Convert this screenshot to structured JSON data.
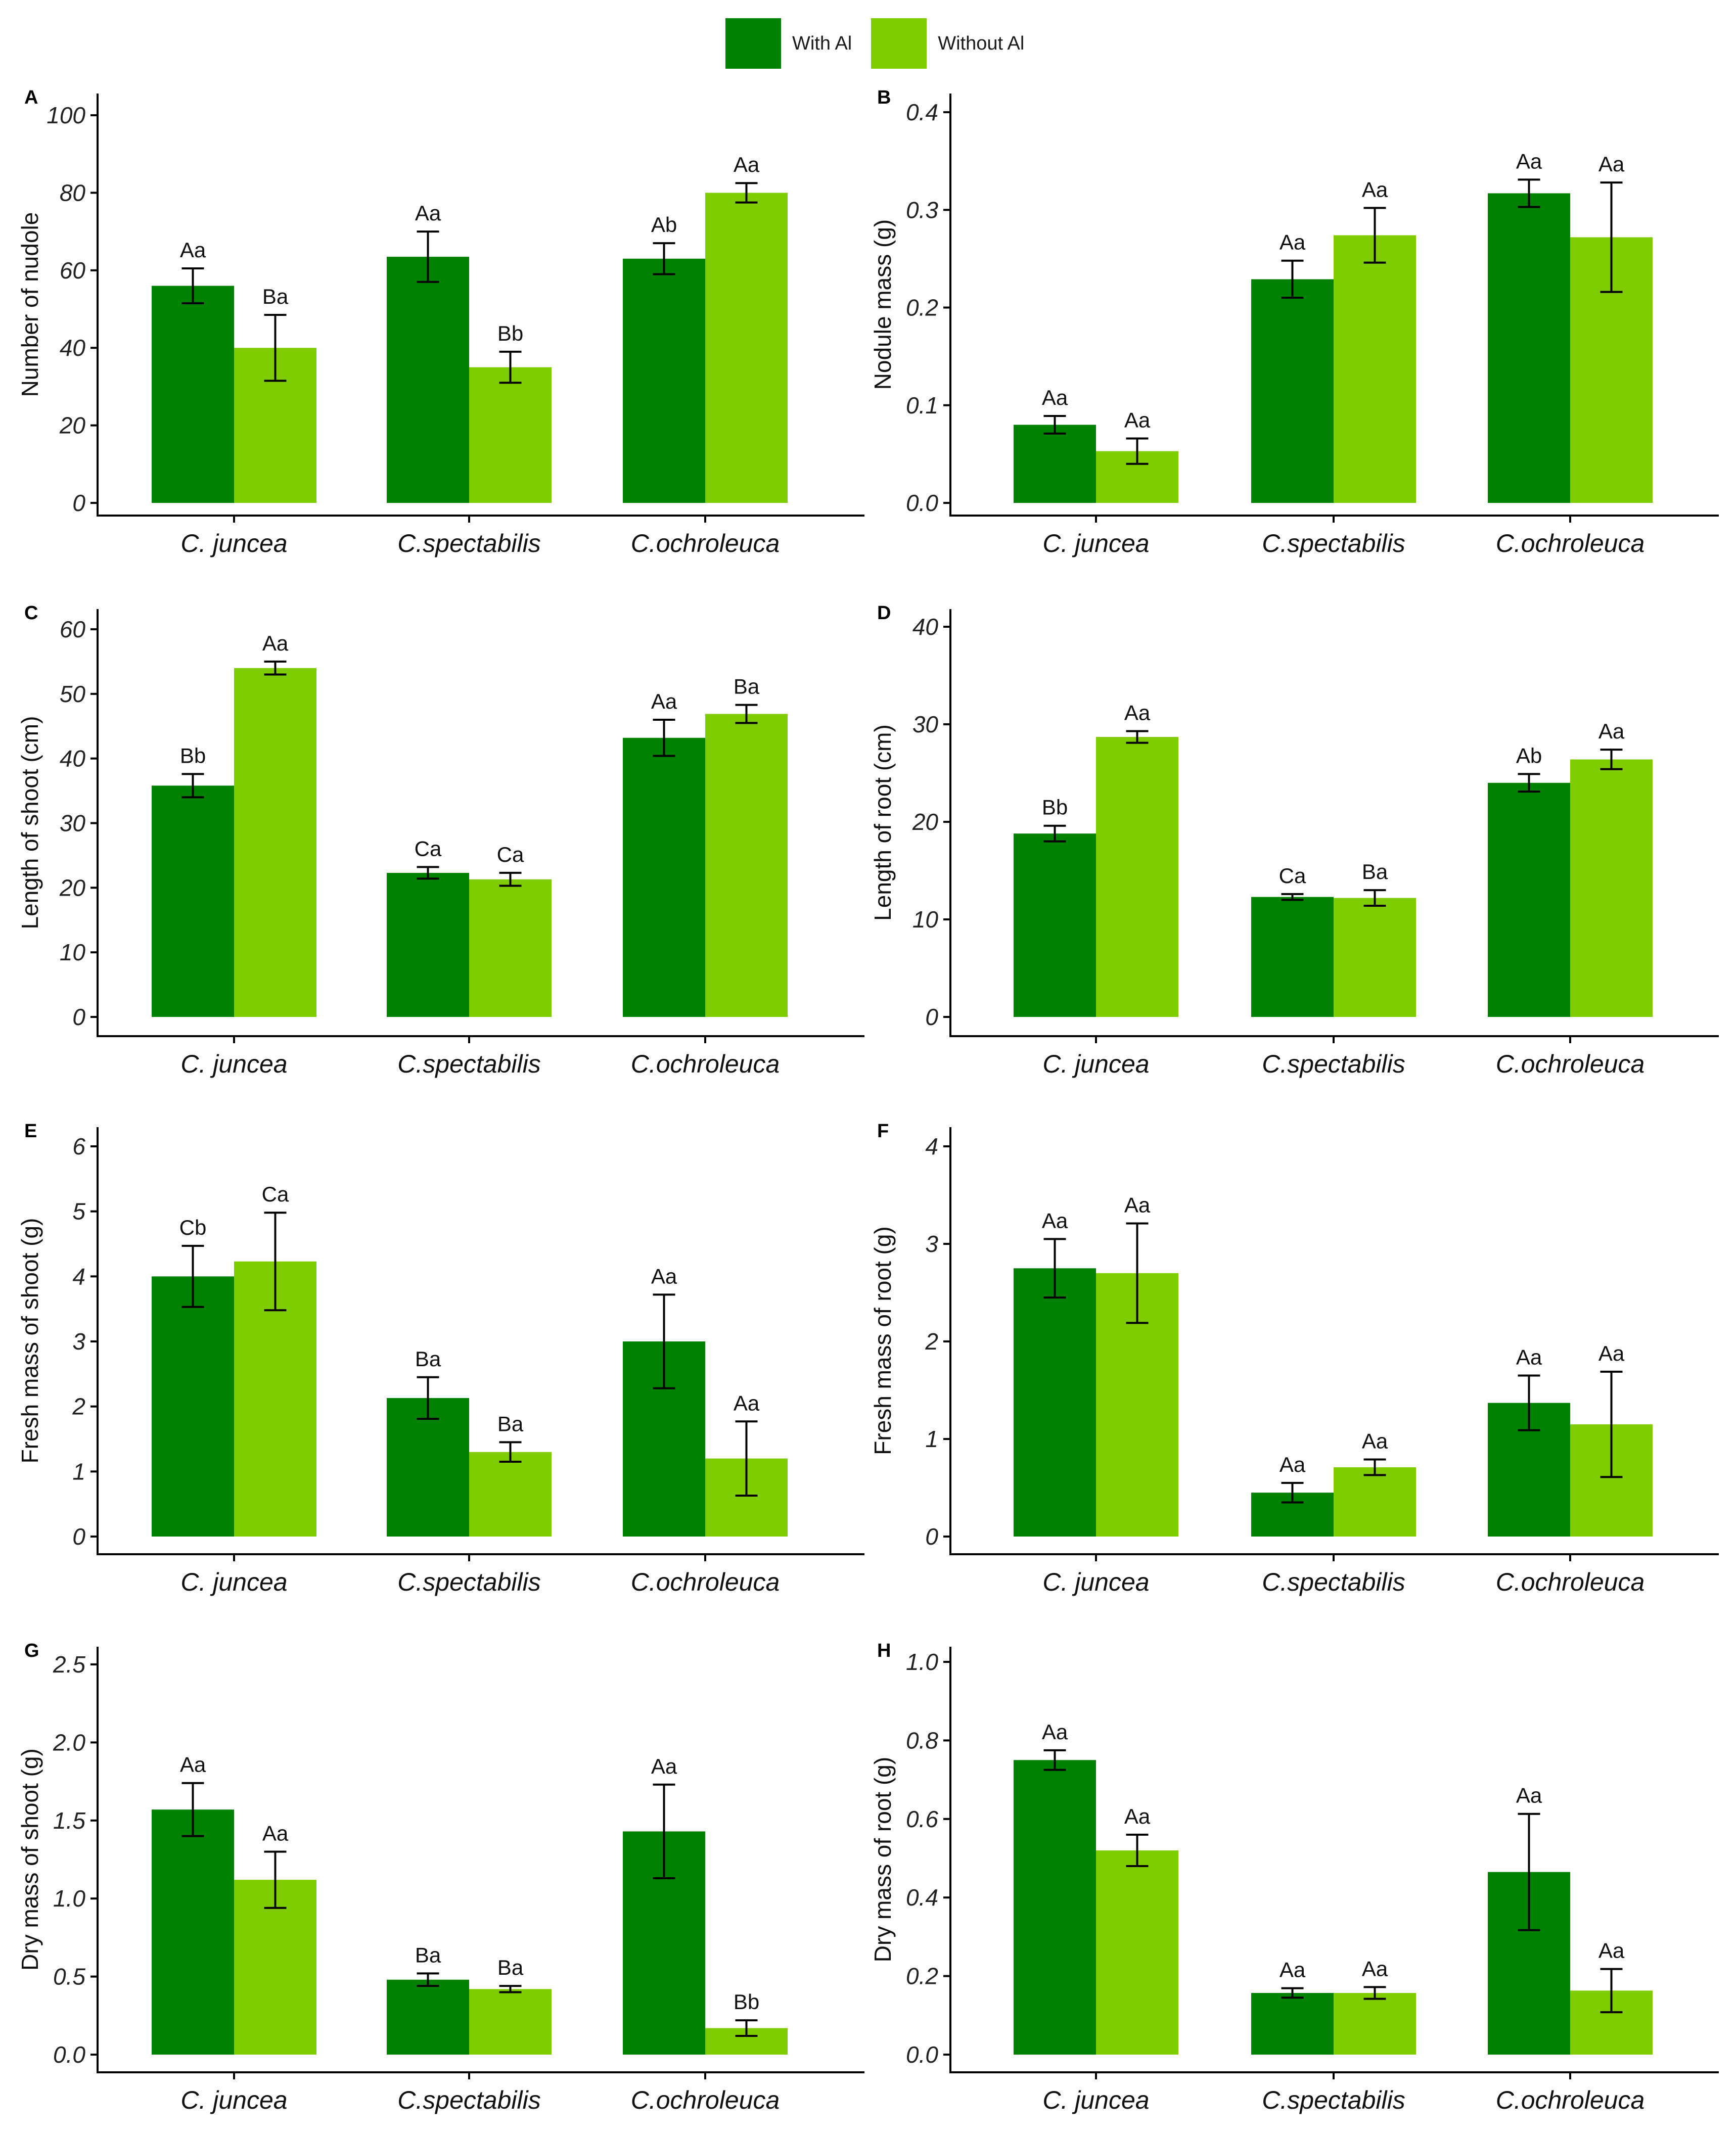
{
  "legend": {
    "with_label": "With Al",
    "without_label": "Without Al",
    "with_color": "#008200",
    "without_color": "#7FCC00"
  },
  "colors": {
    "axis": "#000000",
    "text": "#1a1a1a",
    "errorbar": "#000000"
  },
  "chart_data": [
    {
      "panel": "A",
      "type": "bar",
      "categories": [
        "C. juncea",
        "C.spectabilis",
        "C.ochroleuca"
      ],
      "ylabel": "Number of nudole",
      "ylim": [
        0,
        100
      ],
      "yticks": [
        0,
        20,
        40,
        60,
        80,
        100
      ],
      "ytick_labels": [
        "0",
        "20",
        "40",
        "60",
        "80",
        "100"
      ],
      "series": [
        {
          "name": "With Al",
          "values": [
            56,
            63.5,
            63
          ],
          "err": [
            4.5,
            6.5,
            4
          ],
          "labels": [
            "Aa",
            "Aa",
            "Ab"
          ]
        },
        {
          "name": "Without Al",
          "values": [
            40,
            35,
            80
          ],
          "err": [
            8.5,
            4,
            2.5
          ],
          "labels": [
            "Ba",
            "Bb",
            "Aa"
          ]
        }
      ]
    },
    {
      "panel": "B",
      "type": "bar",
      "categories": [
        "C. juncea",
        "C.spectabilis",
        "C.ochroleuca"
      ],
      "ylabel": "Nodule mass (g)",
      "ylim": [
        0,
        0.4
      ],
      "yticks": [
        0,
        0.1,
        0.2,
        0.3,
        0.4
      ],
      "ytick_labels": [
        "0.0",
        "0.1",
        "0.2",
        "0.3",
        "0.4"
      ],
      "series": [
        {
          "name": "With Al",
          "values": [
            0.08,
            0.229,
            0.317
          ],
          "err": [
            0.009,
            0.019,
            0.014
          ],
          "labels": [
            "Aa",
            "Aa",
            "Aa"
          ]
        },
        {
          "name": "Without Al",
          "values": [
            0.053,
            0.274,
            0.272
          ],
          "err": [
            0.013,
            0.028,
            0.056
          ],
          "labels": [
            "Aa",
            "Aa",
            "Aa"
          ]
        }
      ]
    },
    {
      "panel": "C",
      "type": "bar",
      "categories": [
        "C. juncea",
        "C.spectabilis",
        "C.ochroleuca"
      ],
      "ylabel": "Length of shoot (cm)",
      "ylim": [
        0,
        60
      ],
      "yticks": [
        0,
        10,
        20,
        30,
        40,
        50,
        60
      ],
      "ytick_labels": [
        "0",
        "10",
        "20",
        "30",
        "40",
        "50",
        "60"
      ],
      "series": [
        {
          "name": "With Al",
          "values": [
            35.8,
            22.3,
            43.2
          ],
          "err": [
            1.8,
            0.9,
            2.8
          ],
          "labels": [
            "Bb",
            "Ca",
            "Aa"
          ]
        },
        {
          "name": "Without Al",
          "values": [
            54.0,
            21.3,
            46.9
          ],
          "err": [
            1.0,
            1.0,
            1.4
          ],
          "labels": [
            "Aa",
            "Ca",
            "Ba"
          ]
        }
      ]
    },
    {
      "panel": "D",
      "type": "bar",
      "categories": [
        "C. juncea",
        "C.spectabilis",
        "C.ochroleuca"
      ],
      "ylabel": "Length of root (cm)",
      "ylim": [
        0,
        40
      ],
      "yticks": [
        0,
        10,
        20,
        30,
        40
      ],
      "ytick_labels": [
        "0",
        "10",
        "20",
        "30",
        "40"
      ],
      "series": [
        {
          "name": "With Al",
          "values": [
            18.8,
            12.3,
            24.0
          ],
          "err": [
            0.8,
            0.3,
            0.9
          ],
          "labels": [
            "Bb",
            "Ca",
            "Ab"
          ]
        },
        {
          "name": "Without Al",
          "values": [
            28.7,
            12.2,
            26.4
          ],
          "err": [
            0.6,
            0.8,
            1.0
          ],
          "labels": [
            "Aa",
            "Ba",
            "Aa"
          ]
        }
      ]
    },
    {
      "panel": "E",
      "type": "bar",
      "categories": [
        "C. juncea",
        "C.spectabilis",
        "C.ochroleuca"
      ],
      "ylabel": "Fresh mass of shoot (g)",
      "ylim": [
        0,
        6
      ],
      "yticks": [
        0,
        1,
        2,
        3,
        4,
        5,
        6
      ],
      "ytick_labels": [
        "0",
        "1",
        "2",
        "3",
        "4",
        "5",
        "6"
      ],
      "series": [
        {
          "name": "With Al",
          "values": [
            4.0,
            2.13,
            3.0
          ],
          "err": [
            0.47,
            0.32,
            0.72
          ],
          "labels": [
            "Cb",
            "Ba",
            "Aa"
          ]
        },
        {
          "name": "Without Al",
          "values": [
            4.23,
            1.3,
            1.2
          ],
          "err": [
            0.75,
            0.15,
            0.57
          ],
          "labels": [
            "Ca",
            "Ba",
            "Aa"
          ]
        }
      ]
    },
    {
      "panel": "F",
      "type": "bar",
      "categories": [
        "C. juncea",
        "C.spectabilis",
        "C.ochroleuca"
      ],
      "ylabel": "Fresh mass of root (g)",
      "ylim": [
        0,
        4
      ],
      "yticks": [
        0,
        1,
        2,
        3,
        4
      ],
      "ytick_labels": [
        "0",
        "1",
        "2",
        "3",
        "4"
      ],
      "series": [
        {
          "name": "With Al",
          "values": [
            2.75,
            0.45,
            1.37
          ],
          "err": [
            0.3,
            0.1,
            0.28
          ],
          "labels": [
            "Aa",
            "Aa",
            "Aa"
          ]
        },
        {
          "name": "Without Al",
          "values": [
            2.7,
            0.71,
            1.15
          ],
          "err": [
            0.51,
            0.08,
            0.54
          ],
          "labels": [
            "Aa",
            "Aa",
            "Aa"
          ]
        }
      ]
    },
    {
      "panel": "G",
      "type": "bar",
      "categories": [
        "C. juncea",
        "C.spectabilis",
        "C.ochroleuca"
      ],
      "ylabel": "Dry mass of shoot (g)",
      "ylim": [
        0,
        2.5
      ],
      "yticks": [
        0,
        0.5,
        1.0,
        1.5,
        2.0,
        2.5
      ],
      "ytick_labels": [
        "0.0",
        "0.5",
        "1.0",
        "1.5",
        "2.0",
        "2.5"
      ],
      "series": [
        {
          "name": "With Al",
          "values": [
            1.57,
            0.48,
            1.43
          ],
          "err": [
            0.17,
            0.04,
            0.3
          ],
          "labels": [
            "Aa",
            "Ba",
            "Aa"
          ]
        },
        {
          "name": "Without Al",
          "values": [
            1.12,
            0.42,
            0.17
          ],
          "err": [
            0.18,
            0.02,
            0.05
          ],
          "labels": [
            "Aa",
            "Ba",
            "Bb"
          ]
        }
      ]
    },
    {
      "panel": "H",
      "type": "bar",
      "categories": [
        "C. juncea",
        "C.spectabilis",
        "C.ochroleuca"
      ],
      "ylabel": "Dry mass of root (g)",
      "ylim": [
        0,
        1.0
      ],
      "yticks": [
        0,
        0.2,
        0.4,
        0.6,
        0.8,
        1.0
      ],
      "ytick_labels": [
        "0.0",
        "0.2",
        "0.4",
        "0.6",
        "0.8",
        "1.0"
      ],
      "series": [
        {
          "name": "With Al",
          "values": [
            0.75,
            0.157,
            0.465
          ],
          "err": [
            0.025,
            0.012,
            0.148
          ],
          "labels": [
            "Aa",
            "Aa",
            "Aa"
          ]
        },
        {
          "name": "Without Al",
          "values": [
            0.52,
            0.157,
            0.163
          ],
          "err": [
            0.04,
            0.015,
            0.055
          ],
          "labels": [
            "Aa",
            "Aa",
            "Aa"
          ]
        }
      ]
    }
  ]
}
